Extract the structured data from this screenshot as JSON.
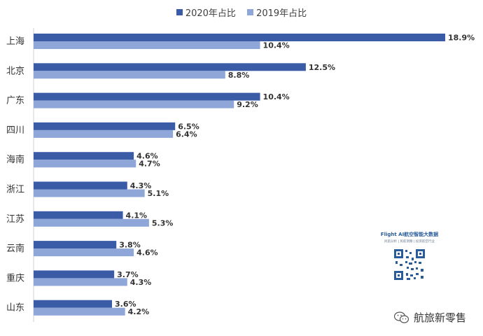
{
  "legend": {
    "series_2020": "2020年占比",
    "series_2019": "2019年占比"
  },
  "colors": {
    "series_2020": "#3a5ba6",
    "series_2019": "#8ea6d8"
  },
  "chart_data": {
    "type": "bar",
    "orientation": "horizontal",
    "categories": [
      "上海",
      "北京",
      "广东",
      "四川",
      "海南",
      "浙江",
      "江苏",
      "云南",
      "重庆",
      "山东"
    ],
    "series": [
      {
        "name": "2020年占比",
        "values": [
          18.9,
          12.5,
          10.4,
          6.5,
          4.6,
          4.3,
          4.1,
          3.8,
          3.7,
          3.6
        ]
      },
      {
        "name": "2019年占比",
        "values": [
          10.4,
          8.8,
          9.2,
          6.4,
          4.7,
          5.1,
          5.3,
          4.6,
          4.3,
          4.2
        ]
      }
    ],
    "value_labels": {
      "2020": [
        "18.9%",
        "12.5%",
        "10.4%",
        "6.5%",
        "4.6%",
        "4.3%",
        "4.1%",
        "3.8%",
        "3.7%",
        "3.6%"
      ],
      "2019": [
        "10.4%",
        "8.8%",
        "9.2%",
        "6.4%",
        "4.7%",
        "5.1%",
        "5.3%",
        "4.6%",
        "4.3%",
        "4.2%"
      ]
    },
    "value_unit": "%",
    "xlim": [
      0,
      18.9
    ],
    "grid": false,
    "legend_position": "top-center"
  },
  "watermark": {
    "title": "Flight AI航空智能大数据",
    "subtitle": "民航分析 | 民航洞察 | 投资航空行业",
    "icon": "qr-code-icon"
  },
  "brand": {
    "name": "航旅新零售",
    "icon": "wechat-icon"
  }
}
